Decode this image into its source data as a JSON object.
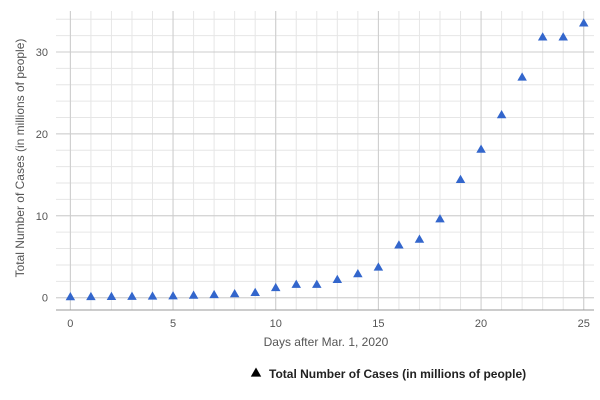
{
  "chart_data": {
    "type": "scatter",
    "xlabel": "Days after Mar. 1, 2020",
    "ylabel": "Total Number of Cases (in millions of people)",
    "xlim": [
      -0.7,
      25.5
    ],
    "ylim": [
      -1.5,
      35
    ],
    "x_ticks": [
      0,
      5,
      10,
      15,
      20,
      25
    ],
    "y_ticks": [
      0,
      10,
      20,
      30
    ],
    "grid": true,
    "legend_position": "bottom",
    "marker": "triangle",
    "series": [
      {
        "name": "Total Number of Cases (in millions of people)",
        "color": "#3366cc",
        "x": [
          0,
          1,
          2,
          3,
          4,
          5,
          6,
          7,
          8,
          9,
          10,
          11,
          12,
          13,
          14,
          15,
          16,
          17,
          18,
          19,
          20,
          21,
          22,
          23,
          24,
          25
        ],
        "y": [
          0.09,
          0.1,
          0.11,
          0.13,
          0.16,
          0.2,
          0.27,
          0.34,
          0.45,
          0.6,
          1.2,
          1.6,
          1.6,
          2.2,
          2.9,
          3.7,
          6.4,
          7.1,
          9.6,
          14.4,
          18.1,
          22.3,
          26.9,
          31.8,
          31.8,
          33.5
        ]
      }
    ]
  }
}
